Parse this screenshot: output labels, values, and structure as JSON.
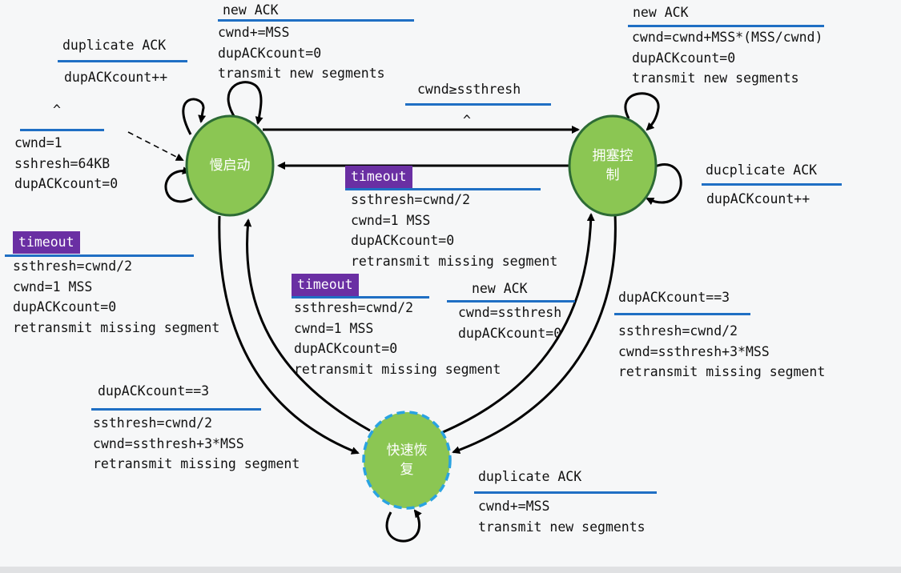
{
  "states": {
    "slow_start": "慢启动",
    "congestion_avoidance": "拥塞控\n制",
    "fast_recovery": "快速恢\n复"
  },
  "labels": {
    "ss_new_ack": {
      "event": "new ACK",
      "actions": [
        "cwnd+=MSS",
        "dupACKcount=0",
        "transmit new segments"
      ]
    },
    "ss_dup_ack": {
      "event": "duplicate ACK",
      "actions": [
        "dupACKcount++"
      ]
    },
    "init": {
      "event": "^",
      "actions": [
        "cwnd=1",
        "sshresh=64KB",
        "dupACKcount=0"
      ]
    },
    "ss_to_ca": {
      "event": "cwnd≥ssthresh",
      "actions": [
        "^"
      ]
    },
    "ca_new_ack": {
      "event": "new ACK",
      "actions": [
        "cwnd=cwnd+MSS*(MSS/cwnd)",
        "dupACKcount=0",
        "transmit new segments"
      ]
    },
    "ca_dup_ack": {
      "event": "ducplicate ACK",
      "actions": [
        "dupACKcount++"
      ]
    },
    "ca_timeout": {
      "event": "timeout",
      "actions": [
        "ssthresh=cwnd/2",
        "cwnd=1 MSS",
        "dupACKcount=0",
        "retransmit missing segment"
      ]
    },
    "ss_timeout": {
      "event": "timeout",
      "actions": [
        "ssthresh=cwnd/2",
        "cwnd=1 MSS",
        "dupACKcount=0",
        "retransmit missing segment"
      ]
    },
    "fr_timeout": {
      "event": "timeout",
      "actions": [
        "ssthresh=cwnd/2",
        "cwnd=1 MSS",
        "dupACKcount=0",
        "retransmit missing segment"
      ]
    },
    "fr_new_ack": {
      "event": "new ACK",
      "actions": [
        "cwnd=ssthresh",
        "dupACKcount=0"
      ]
    },
    "ca_to_fr": {
      "event": "dupACKcount==3",
      "actions": [
        "ssthresh=cwnd/2",
        "cwnd=ssthresh+3*MSS",
        "retransmit missing segment"
      ]
    },
    "ss_to_fr": {
      "event": "dupACKcount==3",
      "actions": [
        "ssthresh=cwnd/2",
        "cwnd=ssthresh+3*MSS",
        "retransmit missing segment"
      ]
    },
    "fr_dup_ack": {
      "event": "duplicate ACK",
      "actions": [
        "cwnd+=MSS",
        "transmit new segments"
      ]
    }
  },
  "colors": {
    "state_fill": "#8bc653",
    "state_border": "#2d6b35",
    "fr_border": "#2aa3e0",
    "underline": "#1f6fc4",
    "timeout_tag": "#6a2fa3"
  }
}
